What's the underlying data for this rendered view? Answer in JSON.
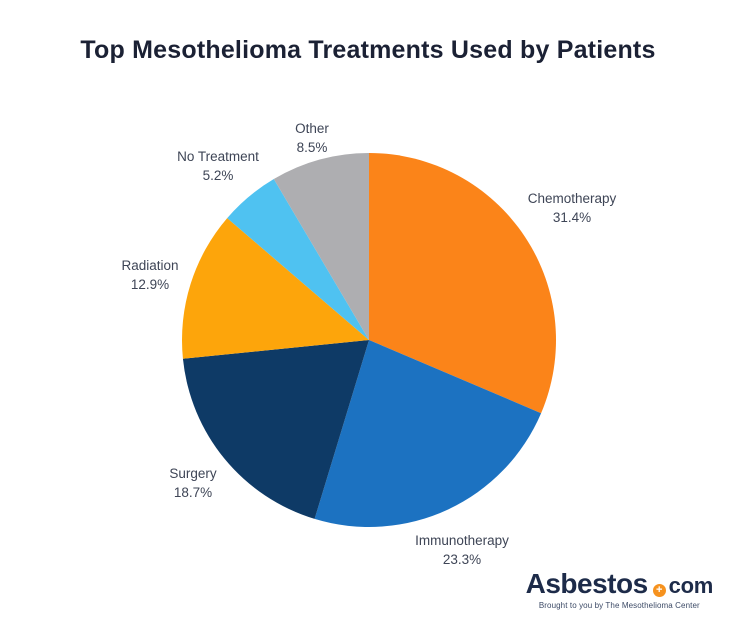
{
  "title": "Top Mesothelioma Treatments Used by Patients",
  "chart_data": {
    "type": "pie",
    "title": "Top Mesothelioma Treatments Used by Patients",
    "start_angle_deg": 0,
    "direction": "clockwise",
    "legend_position": "labels-around-slices",
    "segments": [
      {
        "label": "Chemotherapy",
        "value": 31.4,
        "pct_label": "31.4%",
        "color": "#fb8419"
      },
      {
        "label": "Immunotherapy",
        "value": 23.3,
        "pct_label": "23.3%",
        "color": "#1c72c1"
      },
      {
        "label": "Surgery",
        "value": 18.7,
        "pct_label": "18.7%",
        "color": "#0e3a66"
      },
      {
        "label": "Radiation",
        "value": 12.9,
        "pct_label": "12.9%",
        "color": "#fda50b"
      },
      {
        "label": "No Treatment",
        "value": 5.2,
        "pct_label": "5.2%",
        "color": "#4fc2f1"
      },
      {
        "label": "Other",
        "value": 8.5,
        "pct_label": "8.5%",
        "color": "#aeaeb1"
      }
    ]
  },
  "logo": {
    "brand": "Asbestos",
    "suffix": "com",
    "dot_plus": "+",
    "dot_color": "#f6921e",
    "tagline": "Brought to you by The Mesothelioma Center"
  }
}
